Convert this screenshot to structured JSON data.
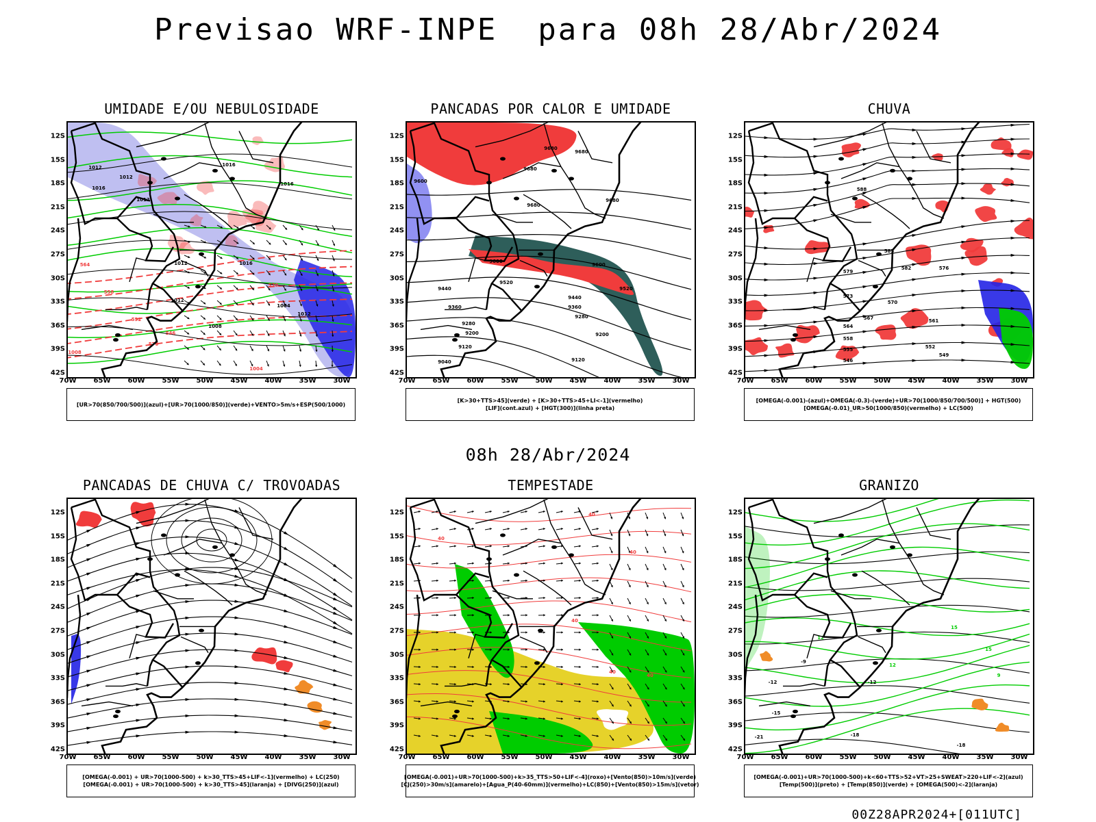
{
  "header": {
    "title": "Previsao WRF-INPE  para 08h 28/Abr/2024"
  },
  "subtitle": "08h 28/Abr/2024",
  "footer_code": "00Z28APR2024+[011UTC]",
  "axes": {
    "latitudes": [
      "12S",
      "15S",
      "18S",
      "21S",
      "24S",
      "27S",
      "30S",
      "33S",
      "36S",
      "39S",
      "42S"
    ],
    "longitudes": [
      "70W",
      "65W",
      "60W",
      "55W",
      "50W",
      "45W",
      "40W",
      "35W",
      "30W"
    ]
  },
  "panels": [
    {
      "id": "umidade",
      "title": "UMIDADE E/OU NEBULOSIDADE",
      "legend": [
        "[UR>70(850/700/500)](azul)+[UR>70(1000/850)](verde)+VENTO>5m/s+ESP(500/1000)"
      ],
      "contour_labels": [
        "1012",
        "1012",
        "1016",
        "1012",
        "1016",
        "1016",
        "1012",
        "1016",
        "1012",
        "1008",
        "1004",
        "1012",
        "1008",
        "1004",
        "576",
        "570",
        "564",
        "558",
        "552",
        "546"
      ]
    },
    {
      "id": "pancadas-calor",
      "title": "PANCADAS POR CALOR E UMIDADE",
      "legend": [
        "[K>30+TTS>45](verde) + [K>30+TTS>45+LI<-1](vermelho)",
        "[LIF](cont.azul) + [HGT(300)](linha preta)"
      ],
      "contour_labels": [
        "9680",
        "9680",
        "9680",
        "9680",
        "9680",
        "9600",
        "9600",
        "9600",
        "9520",
        "9520",
        "9440",
        "9440",
        "9360",
        "9360",
        "9280",
        "9280",
        "9200",
        "9200",
        "9120",
        "9120",
        "9040"
      ]
    },
    {
      "id": "chuva",
      "title": "CHUVA",
      "legend": [
        "[OMEGA(-0.001)-(azul)+OMEGA(-0.3)-(verde)+UR>70(1000/850/700/500)] + HGT(500)",
        "[OMEGA(-0.01)_UR>50(1000/850)(vermelho) + LC(500)"
      ],
      "contour_labels": [
        "588",
        "585",
        "582",
        "579",
        "576",
        "573",
        "570",
        "567",
        "564",
        "561",
        "558",
        "555",
        "552",
        "549",
        "546"
      ]
    },
    {
      "id": "pancadas-trovoadas",
      "title": "PANCADAS DE CHUVA C/ TROVOADAS",
      "legend": [
        "[OMEGA(-0.001) + UR>70(1000-500) + k>30_TTS>45+LIF<-1](vermelho) + LC(250)",
        "[OMEGA(-0.001) + UR>70(1000-500) + k>30_TTS>45](laranja) + [DIVG(250)](azul)"
      ],
      "contour_labels": []
    },
    {
      "id": "tempestade",
      "title": "TEMPESTADE",
      "legend": [
        "[OMEGA(-0.001)+UR>70(1000-500)+k>35_TTS>50+LIF<-4](roxo)+[Vento(850)>10m/s](verde)",
        "[CJ(250)>30m/s](amarelo)+[Agua_P(40-60mm)](vermelho)+LC(850)+[Vento(850)>15m/s](vetor)"
      ],
      "contour_labels": [
        "40",
        "40",
        "40",
        "40",
        "40",
        "40"
      ]
    },
    {
      "id": "granizo",
      "title": "GRANIZO",
      "legend": [
        "[OMEGA(-0.001)+UR>70(1000-500)+k<60+TTS>52+VT>25+SWEAT>220+LIF<-2](azul)",
        "[Temp(500)](preto) + [Temp(850)](verde) + [OMEGA(500)<-2](laranja)"
      ],
      "contour_labels": [
        "-9",
        "-12",
        "-12",
        "-15",
        "-18",
        "-18",
        "-21",
        "12",
        "12",
        "15",
        "15",
        "9"
      ]
    }
  ],
  "colors": {
    "blue_humidity": "#b8b8f0",
    "blue_dark": "#2424e6",
    "green": "#00cc00",
    "red": "#f03c3c",
    "teal": "#2e5e5a",
    "yellow": "#e6d22a",
    "orange": "#f08c28",
    "black": "#000000"
  }
}
